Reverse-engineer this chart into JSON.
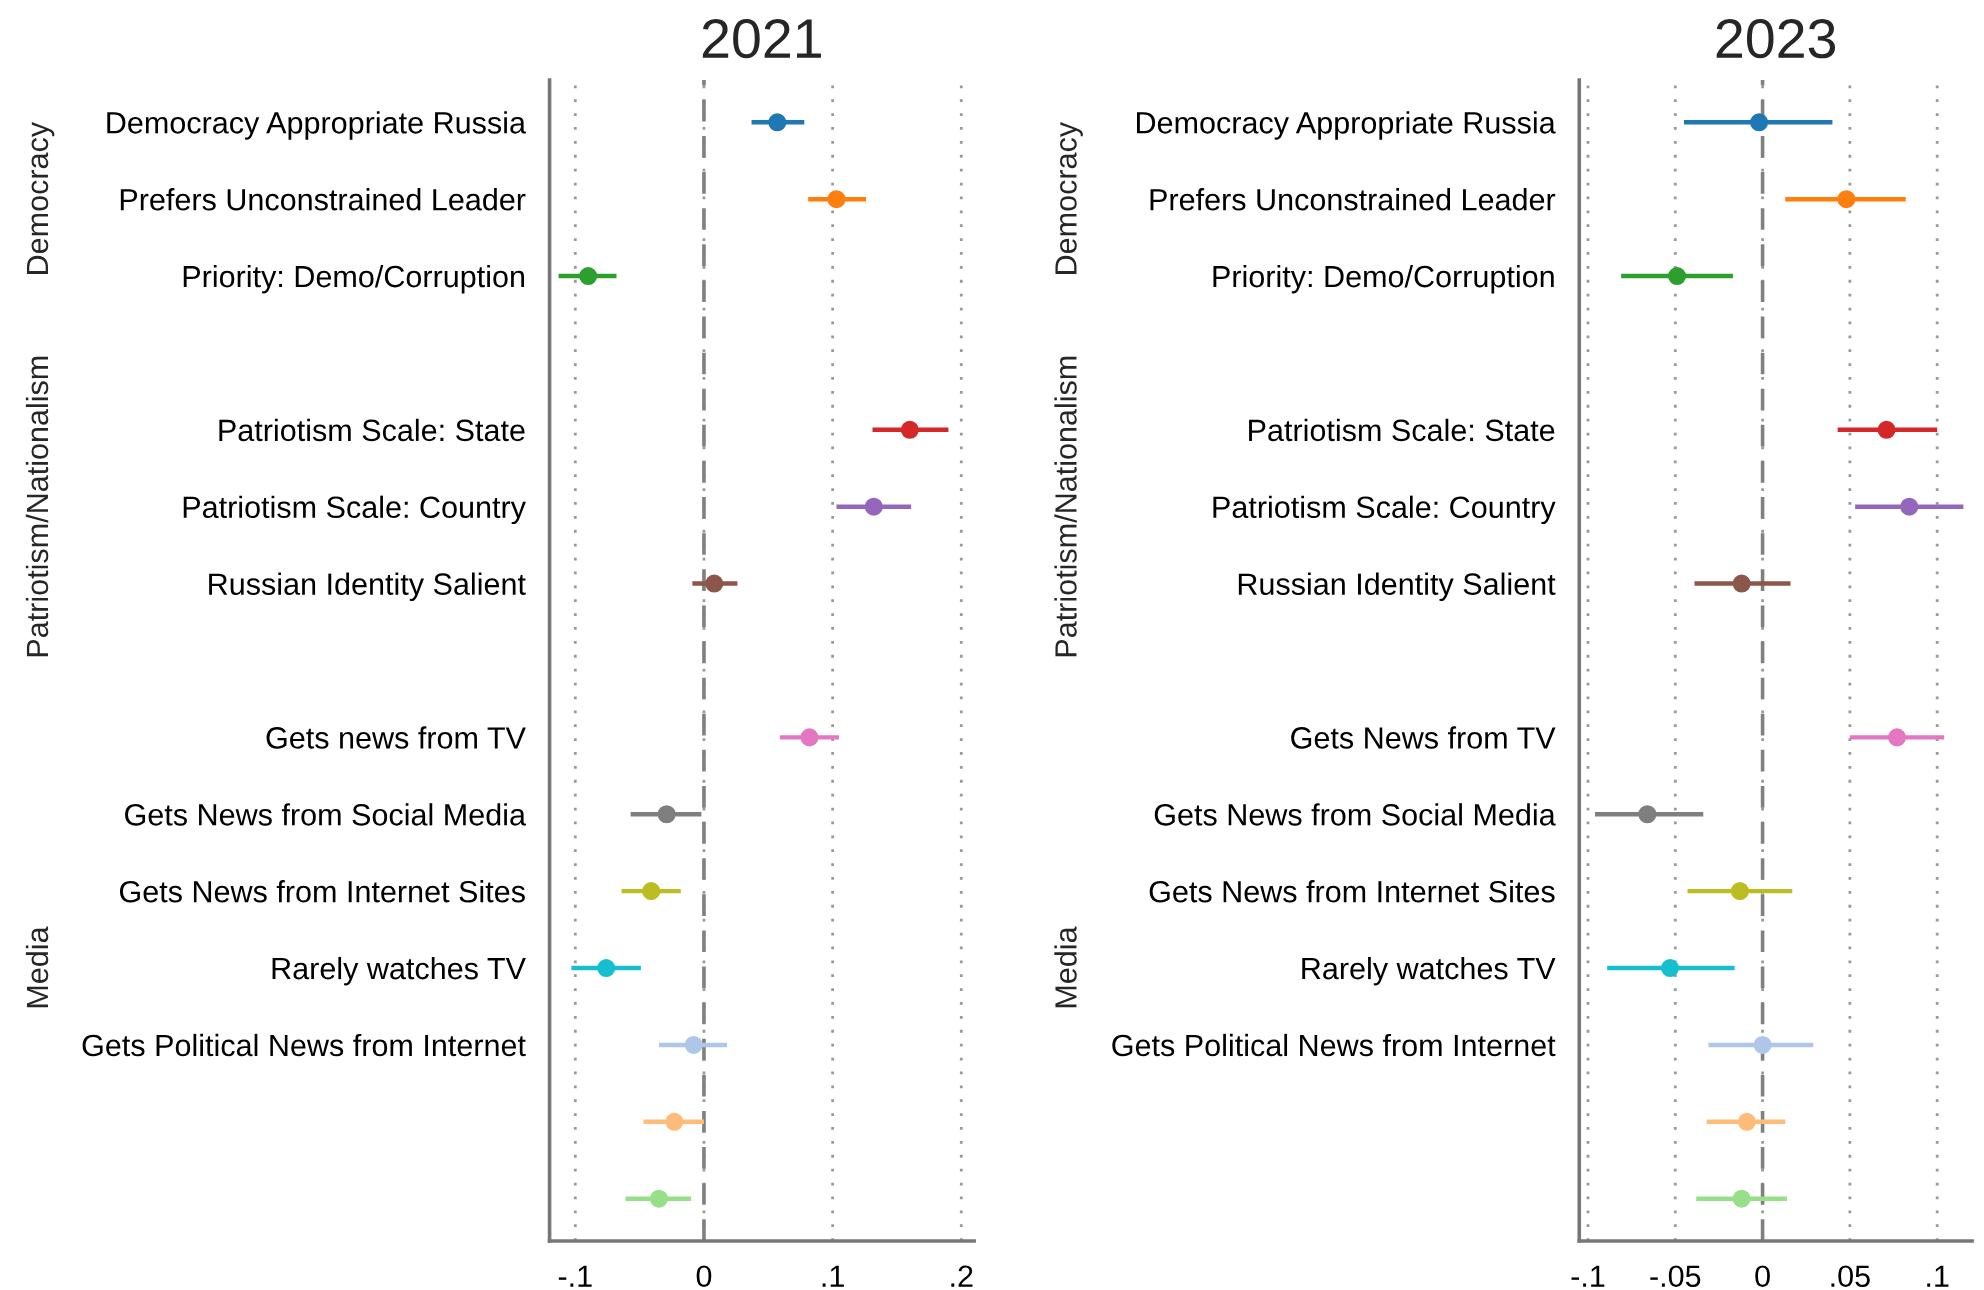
{
  "chart_data": [
    {
      "type": "scatter",
      "title": "2021",
      "orientation": "horizontal",
      "categories": [
        "Democracy Appropriate Russia",
        "Prefers Unconstrained Leader",
        "Priority: Demo/Corruption",
        null,
        "Patriotism Scale: State",
        "Patriotism Scale: Country",
        "Russian Identity Salient",
        null,
        "Gets news from TV",
        "Gets News from Social Media",
        "Gets News from Internet Sites",
        "Rarely watches TV",
        "Gets Political News from Internet",
        null,
        null
      ],
      "values": [
        0.057,
        0.103,
        -0.09,
        null,
        0.16,
        0.132,
        0.008,
        null,
        0.082,
        -0.029,
        -0.041,
        -0.076,
        -0.008,
        -0.023,
        -0.035
      ],
      "errors": [
        [
          0.037,
          0.078
        ],
        [
          0.081,
          0.126
        ],
        [
          -0.113,
          -0.068
        ],
        null,
        [
          0.131,
          0.19
        ],
        [
          0.103,
          0.161
        ],
        [
          -0.009,
          0.026
        ],
        null,
        [
          0.059,
          0.105
        ],
        [
          -0.057,
          -0.002
        ],
        [
          -0.064,
          -0.018
        ],
        [
          -0.103,
          -0.049
        ],
        [
          -0.035,
          0.018
        ],
        [
          -0.047,
          0.0
        ],
        [
          -0.061,
          -0.01
        ]
      ],
      "colors": [
        "#1f77b4",
        "#ff7f0e",
        "#2ca02c",
        "#ffffff",
        "#d62728",
        "#9467bd",
        "#8c564b",
        "#ffffff",
        "#e377c2",
        "#7f7f7f",
        "#bcbd22",
        "#17becf",
        "#aec7e8",
        "#ffbb78",
        "#98df8a"
      ],
      "xlim": [
        -0.12,
        0.21
      ],
      "xticks": [
        {
          "value": -0.1,
          "label": "-.1"
        },
        0,
        {
          "value": 0.1,
          "label": ".1"
        },
        {
          "value": 0.2,
          "label": ".2"
        }
      ],
      "ref_lines": [
        {
          "axis": "x",
          "value": 0,
          "line_style": "dashed",
          "color": "#808080"
        }
      ],
      "annotations": [
        "Democracy",
        "Patriotism/Nationalism",
        "Media"
      ],
      "grid": "x",
      "marker": "circle"
    },
    {
      "type": "scatter",
      "title": "2023",
      "orientation": "horizontal",
      "categories": [
        "Democracy Appropriate Russia",
        "Prefers Unconstrained Leader",
        "Priority: Demo/Corruption",
        null,
        "Patriotism Scale: State",
        "Patriotism Scale: Country",
        "Russian Identity Salient",
        null,
        "Gets News from TV",
        "Gets News from Social Media",
        "Gets News from Internet Sites",
        "Rarely watches TV",
        "Gets Political News from Internet",
        null,
        null
      ],
      "values": [
        -0.002,
        0.048,
        -0.049,
        null,
        0.071,
        0.084,
        -0.012,
        null,
        0.077,
        -0.066,
        -0.013,
        -0.053,
        0.0,
        -0.009,
        -0.012
      ],
      "errors": [
        [
          -0.045,
          0.04
        ],
        [
          0.013,
          0.082
        ],
        [
          -0.081,
          -0.017
        ],
        null,
        [
          0.043,
          0.1
        ],
        [
          0.053,
          0.115
        ],
        [
          -0.039,
          0.016
        ],
        null,
        [
          0.05,
          0.104
        ],
        [
          -0.096,
          -0.034
        ],
        [
          -0.043,
          0.017
        ],
        [
          -0.089,
          -0.016
        ],
        [
          -0.031,
          0.029
        ],
        [
          -0.032,
          0.013
        ],
        [
          -0.038,
          0.014
        ]
      ],
      "colors": [
        "#1f77b4",
        "#ff7f0e",
        "#2ca02c",
        "#ffffff",
        "#d62728",
        "#9467bd",
        "#8c564b",
        "#ffffff",
        "#e377c2",
        "#7f7f7f",
        "#bcbd22",
        "#17becf",
        "#aec7e8",
        "#ffbb78",
        "#98df8a"
      ],
      "xlim": [
        -0.105,
        0.12
      ],
      "xticks": [
        {
          "value": -0.1,
          "label": "-.1"
        },
        {
          "value": -0.05,
          "label": "-.05"
        },
        0,
        {
          "value": 0.05,
          "label": ".05"
        },
        {
          "value": 0.1,
          "label": ".1"
        }
      ],
      "ref_lines": [
        {
          "axis": "x",
          "value": 0,
          "line_style": "dashed",
          "color": "#808080"
        }
      ],
      "annotations": [
        "Democracy",
        "Patriotism/Nationalism",
        "Media"
      ],
      "grid": "x",
      "marker": "circle"
    }
  ]
}
